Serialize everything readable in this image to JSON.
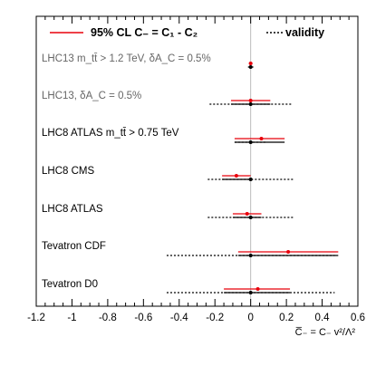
{
  "chart_data": {
    "type": "scatter",
    "subtype": "interval-plot",
    "xlim": [
      -1.2,
      0.6
    ],
    "x_ticks": [
      "-1.2",
      "-1",
      "-0.8",
      "-0.6",
      "-0.4",
      "-0.2",
      "0",
      "0.2",
      "0.4",
      "0.6"
    ],
    "x_tick_values": [
      -1.2,
      -1.0,
      -0.8,
      -0.6,
      -0.4,
      -0.2,
      0.0,
      0.2,
      0.4,
      0.6
    ],
    "xlabel": {
      "main": "C̅₋ = C₋ v²/Λ²"
    },
    "legend": {
      "cl": "95% CL C₋ = C₁ - C₂",
      "validity": "validity",
      "placement": "top"
    },
    "colors": {
      "cl": "#e8000b",
      "validity": "#000000",
      "zero_line": "#bbbbbb"
    },
    "rows": [
      {
        "label": "LHC13 m_tt̄ > 1.2 TeV, δA_C = 0.5%",
        "label_color": "#666666",
        "cl_center": 0.0,
        "cl_low": -0.01,
        "cl_high": 0.01,
        "val_center": 0.0,
        "val_low": -0.015,
        "val_high": 0.015
      },
      {
        "label": "LHC13, δA_C = 0.5%",
        "label_color": "#666666",
        "cl_center": 0.0,
        "cl_low": -0.11,
        "cl_high": 0.11,
        "val_center": 0.0,
        "val_low": -0.23,
        "val_high": 0.23
      },
      {
        "label": "LHC8 ATLAS m_tt̄ > 0.75 TeV",
        "label_color": "#000000",
        "cl_center": 0.06,
        "cl_low": -0.09,
        "cl_high": 0.19,
        "val_center": 0.0,
        "val_low": -0.09,
        "val_high": 0.09
      },
      {
        "label": "LHC8 CMS",
        "label_color": "#000000",
        "cl_center": -0.08,
        "cl_low": -0.16,
        "cl_high": 0.0,
        "val_center": 0.0,
        "val_low": -0.24,
        "val_high": 0.24
      },
      {
        "label": "LHC8 ATLAS",
        "label_color": "#000000",
        "cl_center": -0.02,
        "cl_low": -0.1,
        "cl_high": 0.06,
        "val_center": 0.0,
        "val_low": -0.24,
        "val_high": 0.24
      },
      {
        "label": "Tevatron CDF",
        "label_color": "#000000",
        "cl_center": 0.21,
        "cl_low": -0.07,
        "cl_high": 0.49,
        "val_center": 0.0,
        "val_low": -0.47,
        "val_high": 0.47
      },
      {
        "label": "Tevatron D0",
        "label_color": "#000000",
        "cl_center": 0.04,
        "cl_low": -0.15,
        "cl_high": 0.22,
        "val_center": 0.0,
        "val_low": -0.47,
        "val_high": 0.47
      }
    ]
  }
}
